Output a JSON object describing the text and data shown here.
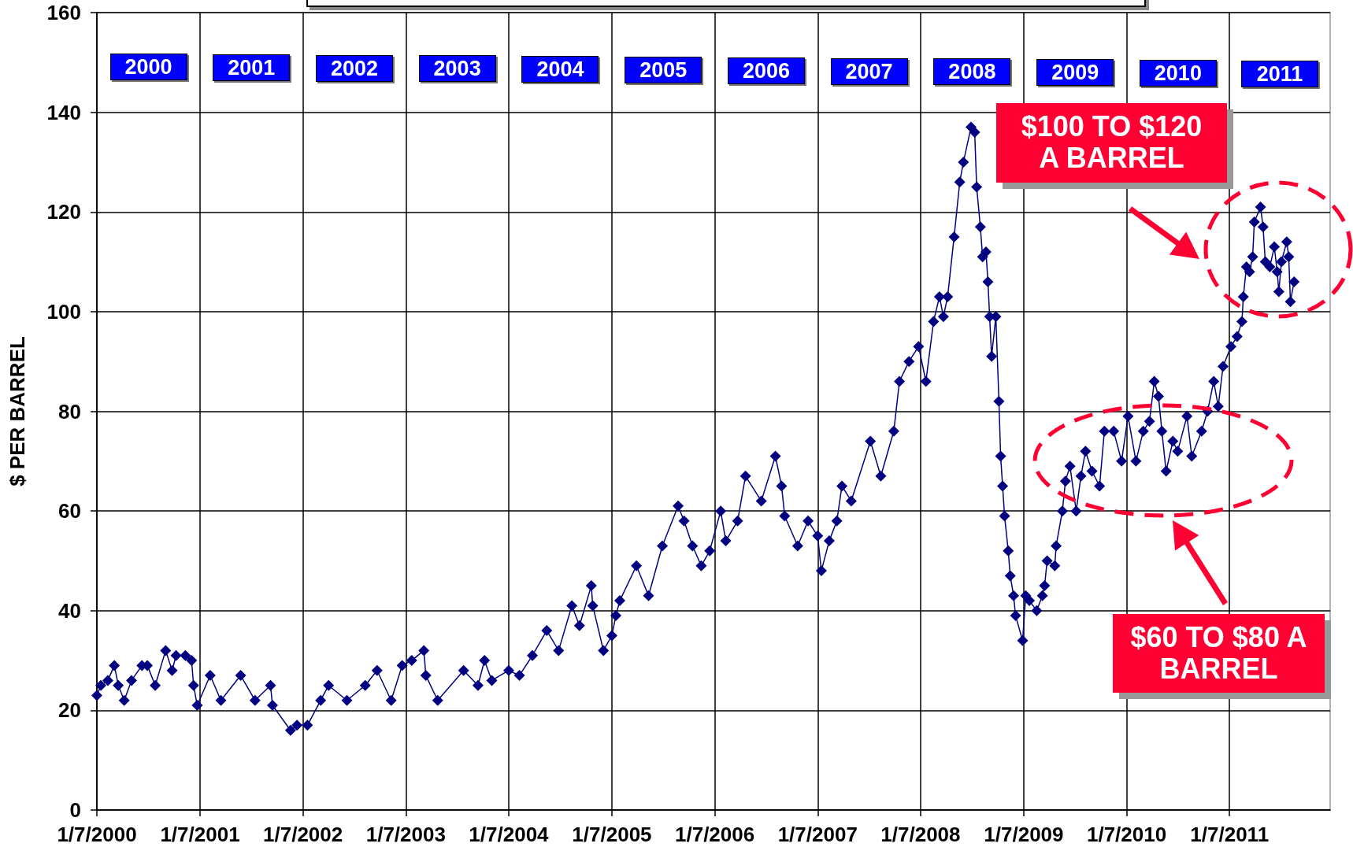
{
  "chart_data": {
    "type": "line",
    "ylabel": "$ PER BARREL",
    "x": [
      "2000-01-07",
      "2000-01-21",
      "2000-02-15",
      "2000-03-09",
      "2000-03-23",
      "2000-04-13",
      "2000-05-09",
      "2000-06-15",
      "2000-07-04",
      "2000-08-01",
      "2000-09-07",
      "2000-09-30",
      "2000-10-14",
      "2000-11-16",
      "2000-12-08",
      "2000-12-15",
      "2000-12-28",
      "2001-02-12",
      "2001-03-22",
      "2001-05-31",
      "2001-07-21",
      "2001-09-14",
      "2001-09-21",
      "2001-11-24",
      "2001-12-17",
      "2002-01-23",
      "2002-03-11",
      "2002-04-08",
      "2002-06-12",
      "2002-08-16",
      "2002-09-27",
      "2002-11-16",
      "2002-12-25",
      "2003-01-28",
      "2003-03-12",
      "2003-03-19",
      "2003-04-30",
      "2003-07-31",
      "2003-09-20",
      "2003-10-13",
      "2003-11-08",
      "2004-01-07",
      "2004-02-14",
      "2004-03-31",
      "2004-05-21",
      "2004-07-02",
      "2004-08-18",
      "2004-09-14",
      "2004-10-26",
      "2004-10-31",
      "2004-12-08",
      "2005-01-07",
      "2005-01-21",
      "2005-02-04",
      "2005-04-04",
      "2005-05-17",
      "2005-07-05",
      "2005-08-30",
      "2005-09-20",
      "2005-10-20",
      "2005-11-20",
      "2005-12-20",
      "2006-01-28",
      "2006-02-15",
      "2006-03-29",
      "2006-04-26",
      "2006-06-21",
      "2006-08-10",
      "2006-09-01",
      "2006-09-12",
      "2006-10-28",
      "2006-12-04",
      "2007-01-07",
      "2007-01-20",
      "2007-02-17",
      "2007-03-16",
      "2007-04-03",
      "2007-05-06",
      "2007-07-13",
      "2007-08-19",
      "2007-10-04",
      "2007-10-24",
      "2007-11-27",
      "2007-12-31",
      "2008-01-26",
      "2008-02-22",
      "2008-03-14",
      "2008-03-28",
      "2008-04-12",
      "2008-05-05",
      "2008-05-25",
      "2008-06-07",
      "2008-07-04",
      "2008-07-17",
      "2008-07-24",
      "2008-08-06",
      "2008-08-14",
      "2008-08-26",
      "2008-09-02",
      "2008-09-08",
      "2008-09-15",
      "2008-09-30",
      "2008-10-11",
      "2008-10-17",
      "2008-10-24",
      "2008-10-31",
      "2008-11-13",
      "2008-11-20",
      "2008-12-02",
      "2008-12-09",
      "2009-01-03",
      "2009-01-14",
      "2009-01-27",
      "2009-02-22",
      "2009-03-14",
      "2009-03-22",
      "2009-03-31",
      "2009-04-27",
      "2009-05-02",
      "2009-05-24",
      "2009-06-04",
      "2009-06-20",
      "2009-07-12",
      "2009-07-29",
      "2009-08-14",
      "2009-09-06",
      "2009-10-03",
      "2009-10-20",
      "2009-11-22",
      "2009-12-20",
      "2010-01-12",
      "2010-02-09",
      "2010-03-07",
      "2010-03-29",
      "2010-04-15",
      "2010-04-30",
      "2010-05-12",
      "2010-05-27",
      "2010-06-20",
      "2010-07-07",
      "2010-08-09",
      "2010-08-26",
      "2010-09-30",
      "2010-10-21",
      "2010-11-12",
      "2010-11-28",
      "2010-12-15",
      "2011-01-12",
      "2011-02-03",
      "2011-02-20",
      "2011-02-25",
      "2011-03-08",
      "2011-03-19",
      "2011-03-30",
      "2011-04-05",
      "2011-04-27",
      "2011-05-06",
      "2011-05-14",
      "2011-05-30",
      "2011-06-15",
      "2011-06-25",
      "2011-07-01",
      "2011-07-10",
      "2011-07-29",
      "2011-08-05",
      "2011-08-11",
      "2011-08-24"
    ],
    "series": [
      {
        "color": "#000080",
        "values": [
          23,
          25,
          26,
          29,
          25,
          22,
          26,
          29,
          29,
          25,
          32,
          28,
          31,
          31,
          30,
          25,
          21,
          27,
          22,
          27,
          22,
          25,
          21,
          16,
          17,
          17,
          22,
          25,
          22,
          25,
          28,
          22,
          29,
          30,
          32,
          27,
          22,
          28,
          25,
          30,
          26,
          28,
          27,
          31,
          36,
          32,
          41,
          37,
          45,
          41,
          32,
          35,
          39,
          42,
          49,
          43,
          53,
          61,
          58,
          53,
          49,
          52,
          60,
          54,
          58,
          67,
          62,
          71,
          65,
          59,
          53,
          58,
          55,
          48,
          54,
          58,
          65,
          62,
          74,
          67,
          76,
          86,
          90,
          93,
          86,
          98,
          103,
          99,
          103,
          115,
          126,
          130,
          137,
          136,
          125,
          117,
          111,
          112,
          106,
          99,
          91,
          99,
          82,
          71,
          65,
          59,
          52,
          47,
          43,
          39,
          34,
          43,
          42,
          40,
          43,
          45,
          50,
          49,
          53,
          60,
          66,
          69,
          60,
          67,
          72,
          68,
          65,
          76,
          76,
          70,
          79,
          70,
          76,
          78,
          86,
          83,
          76,
          68,
          74,
          72,
          79,
          71,
          76,
          80,
          86,
          81,
          89,
          93,
          95,
          98,
          103,
          109,
          108,
          111,
          118,
          121,
          117,
          110,
          109,
          113,
          108,
          104,
          110,
          114,
          111,
          102,
          106
        ]
      }
    ],
    "xlim": [
      "2000-01-07",
      "2011-12-30"
    ],
    "xticks": [
      {
        "value": "2000-01-07",
        "label": "1/7/2000"
      },
      {
        "value": "2001-01-07",
        "label": "1/7/2001"
      },
      {
        "value": "2002-01-07",
        "label": "1/7/2002"
      },
      {
        "value": "2003-01-07",
        "label": "1/7/2003"
      },
      {
        "value": "2004-01-07",
        "label": "1/7/2004"
      },
      {
        "value": "2005-01-07",
        "label": "1/7/2005"
      },
      {
        "value": "2006-01-07",
        "label": "1/7/2006"
      },
      {
        "value": "2007-01-07",
        "label": "1/7/2007"
      },
      {
        "value": "2008-01-07",
        "label": "1/7/2008"
      },
      {
        "value": "2009-01-07",
        "label": "1/7/2009"
      },
      {
        "value": "2010-01-07",
        "label": "1/7/2010"
      },
      {
        "value": "2011-01-07",
        "label": "1/7/2011"
      }
    ],
    "ylim": [
      0,
      160
    ],
    "yticks": [
      0,
      20,
      40,
      60,
      80,
      100,
      120,
      140,
      160
    ],
    "grid": true,
    "marker": "diamond",
    "annotations": [
      "2000",
      "2001",
      "2002",
      "2003",
      "2004",
      "2005",
      "2006",
      "2007",
      "2008",
      "2009",
      "2010",
      "2011",
      "$100 TO $120 A BARREL",
      "$60 TO $80 A BARREL"
    ]
  }
}
